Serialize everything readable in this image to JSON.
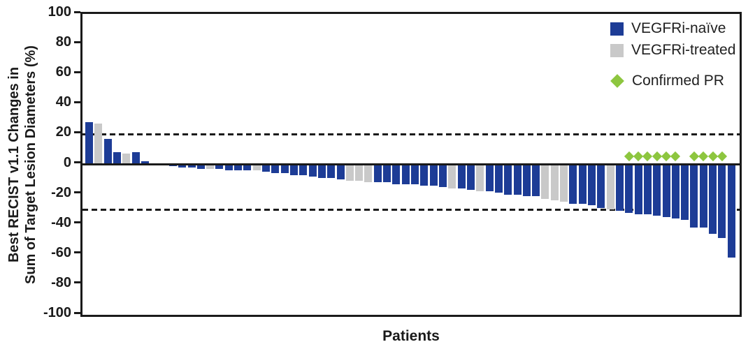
{
  "chart_data": {
    "type": "bar",
    "subtype": "waterfall",
    "title": "",
    "xlabel": "Patients",
    "ylabel_lines": [
      "Best RECIST v1.1 Changes in",
      "Sum of Target Lesion Diameters (%)"
    ],
    "ylim": [
      -100,
      100
    ],
    "ytick_step": 20,
    "ytick_labels": [
      "100",
      "80",
      "60",
      "40",
      "20",
      "0",
      "-20",
      "-40",
      "-60",
      "-80",
      "-100"
    ],
    "grid": false,
    "legend_position": "top-right-inside",
    "reference_lines": [
      20,
      -30
    ],
    "legend": [
      {
        "key": "naive",
        "label": "VEGFRi-naïve",
        "marker": "square",
        "color": "#1d3c96"
      },
      {
        "key": "treated",
        "label": "VEGFRi-treated",
        "marker": "square",
        "color": "#c9c9c9"
      },
      {
        "key": "pr",
        "label": "Confirmed PR",
        "marker": "diamond",
        "color": "#8dc63f"
      }
    ],
    "patients": [
      {
        "group": "naive",
        "value": 28,
        "confirmed_pr": false
      },
      {
        "group": "treated",
        "value": 27,
        "confirmed_pr": false
      },
      {
        "group": "naive",
        "value": 17,
        "confirmed_pr": false
      },
      {
        "group": "naive",
        "value": 8,
        "confirmed_pr": false
      },
      {
        "group": "treated",
        "value": 7,
        "confirmed_pr": false
      },
      {
        "group": "naive",
        "value": 8,
        "confirmed_pr": false
      },
      {
        "group": "naive",
        "value": 2,
        "confirmed_pr": false
      },
      {
        "group": "naive",
        "value": 0,
        "confirmed_pr": false
      },
      {
        "group": "naive",
        "value": 0,
        "confirmed_pr": false
      },
      {
        "group": "naive",
        "value": -1,
        "confirmed_pr": false
      },
      {
        "group": "naive",
        "value": -2,
        "confirmed_pr": false
      },
      {
        "group": "naive",
        "value": -2,
        "confirmed_pr": false
      },
      {
        "group": "naive",
        "value": -3,
        "confirmed_pr": false
      },
      {
        "group": "treated",
        "value": -3,
        "confirmed_pr": false
      },
      {
        "group": "naive",
        "value": -3,
        "confirmed_pr": false
      },
      {
        "group": "naive",
        "value": -4,
        "confirmed_pr": false
      },
      {
        "group": "naive",
        "value": -4,
        "confirmed_pr": false
      },
      {
        "group": "naive",
        "value": -4,
        "confirmed_pr": false
      },
      {
        "group": "treated",
        "value": -4,
        "confirmed_pr": false
      },
      {
        "group": "naive",
        "value": -5,
        "confirmed_pr": false
      },
      {
        "group": "naive",
        "value": -6,
        "confirmed_pr": false
      },
      {
        "group": "naive",
        "value": -6,
        "confirmed_pr": false
      },
      {
        "group": "naive",
        "value": -7,
        "confirmed_pr": false
      },
      {
        "group": "naive",
        "value": -7,
        "confirmed_pr": false
      },
      {
        "group": "naive",
        "value": -8,
        "confirmed_pr": false
      },
      {
        "group": "naive",
        "value": -9,
        "confirmed_pr": false
      },
      {
        "group": "naive",
        "value": -9,
        "confirmed_pr": false
      },
      {
        "group": "naive",
        "value": -10,
        "confirmed_pr": false
      },
      {
        "group": "treated",
        "value": -11,
        "confirmed_pr": false
      },
      {
        "group": "treated",
        "value": -11,
        "confirmed_pr": false
      },
      {
        "group": "treated",
        "value": -12,
        "confirmed_pr": false
      },
      {
        "group": "naive",
        "value": -12,
        "confirmed_pr": false
      },
      {
        "group": "naive",
        "value": -12,
        "confirmed_pr": false
      },
      {
        "group": "naive",
        "value": -13,
        "confirmed_pr": false
      },
      {
        "group": "naive",
        "value": -13,
        "confirmed_pr": false
      },
      {
        "group": "naive",
        "value": -13,
        "confirmed_pr": false
      },
      {
        "group": "naive",
        "value": -14,
        "confirmed_pr": false
      },
      {
        "group": "naive",
        "value": -14,
        "confirmed_pr": false
      },
      {
        "group": "naive",
        "value": -15,
        "confirmed_pr": false
      },
      {
        "group": "treated",
        "value": -16,
        "confirmed_pr": false
      },
      {
        "group": "naive",
        "value": -16,
        "confirmed_pr": false
      },
      {
        "group": "naive",
        "value": -17,
        "confirmed_pr": false
      },
      {
        "group": "treated",
        "value": -18,
        "confirmed_pr": false
      },
      {
        "group": "naive",
        "value": -18,
        "confirmed_pr": false
      },
      {
        "group": "naive",
        "value": -19,
        "confirmed_pr": false
      },
      {
        "group": "naive",
        "value": -20,
        "confirmed_pr": false
      },
      {
        "group": "naive",
        "value": -20,
        "confirmed_pr": false
      },
      {
        "group": "naive",
        "value": -21,
        "confirmed_pr": false
      },
      {
        "group": "naive",
        "value": -21,
        "confirmed_pr": false
      },
      {
        "group": "treated",
        "value": -23,
        "confirmed_pr": false
      },
      {
        "group": "treated",
        "value": -24,
        "confirmed_pr": false
      },
      {
        "group": "treated",
        "value": -25,
        "confirmed_pr": false
      },
      {
        "group": "naive",
        "value": -26,
        "confirmed_pr": false
      },
      {
        "group": "naive",
        "value": -26,
        "confirmed_pr": false
      },
      {
        "group": "naive",
        "value": -27,
        "confirmed_pr": false
      },
      {
        "group": "naive",
        "value": -29,
        "confirmed_pr": false
      },
      {
        "group": "treated",
        "value": -30,
        "confirmed_pr": false
      },
      {
        "group": "naive",
        "value": -31,
        "confirmed_pr": false
      },
      {
        "group": "naive",
        "value": -32,
        "confirmed_pr": true
      },
      {
        "group": "naive",
        "value": -33,
        "confirmed_pr": true
      },
      {
        "group": "naive",
        "value": -33,
        "confirmed_pr": true
      },
      {
        "group": "naive",
        "value": -34,
        "confirmed_pr": true
      },
      {
        "group": "naive",
        "value": -35,
        "confirmed_pr": true
      },
      {
        "group": "naive",
        "value": -36,
        "confirmed_pr": true
      },
      {
        "group": "naive",
        "value": -37,
        "confirmed_pr": false
      },
      {
        "group": "naive",
        "value": -42,
        "confirmed_pr": true
      },
      {
        "group": "naive",
        "value": -42,
        "confirmed_pr": true
      },
      {
        "group": "naive",
        "value": -46,
        "confirmed_pr": true
      },
      {
        "group": "naive",
        "value": -49,
        "confirmed_pr": true
      },
      {
        "group": "naive",
        "value": -62,
        "confirmed_pr": false
      }
    ]
  }
}
